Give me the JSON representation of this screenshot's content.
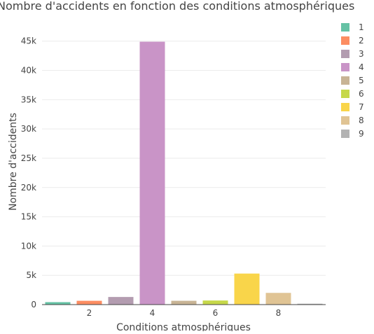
{
  "chart_data": {
    "type": "bar",
    "title": "Nombre d'accidents en fonction des conditions atmosphériques",
    "xlabel": "Conditions atmosphériques",
    "ylabel": "Nombre d'accidents",
    "x": [
      1,
      2,
      3,
      4,
      5,
      6,
      7,
      8,
      9
    ],
    "values": [
      420,
      650,
      1300,
      44900,
      650,
      700,
      5300,
      2000,
      150
    ],
    "colors": [
      "#66c2a5",
      "#fc8d62",
      "#b39cb0",
      "#c994c7",
      "#c8b495",
      "#c6d84a",
      "#f9d54a",
      "#e0c494",
      "#b3b3b3"
    ],
    "xlim": [
      0.5,
      9.5
    ],
    "ylim": [
      0,
      47000
    ],
    "x_ticks": [
      2,
      4,
      6,
      8
    ],
    "x_tick_labels": [
      "2",
      "4",
      "6",
      "8"
    ],
    "y_ticks": [
      0,
      5000,
      10000,
      15000,
      20000,
      25000,
      30000,
      35000,
      40000,
      45000
    ],
    "y_tick_labels": [
      "0",
      "5k",
      "10k",
      "15k",
      "20k",
      "25k",
      "30k",
      "35k",
      "40k",
      "45k"
    ],
    "legend": [
      "1",
      "2",
      "3",
      "4",
      "5",
      "6",
      "7",
      "8",
      "9"
    ],
    "legend_position": "right",
    "grid": true
  }
}
